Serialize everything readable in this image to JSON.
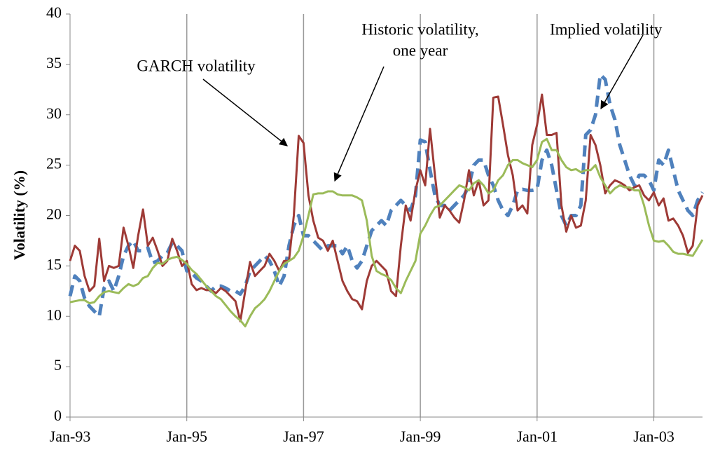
{
  "chart_data": {
    "type": "line",
    "y_label": "Volatility (%)",
    "categories": [
      "Jan-93",
      null,
      null,
      null,
      null,
      null,
      null,
      null,
      null,
      null,
      null,
      null,
      null,
      null,
      null,
      null,
      null,
      null,
      null,
      null,
      null,
      null,
      null,
      null,
      "Jan-95",
      null,
      null,
      null,
      null,
      null,
      null,
      null,
      null,
      null,
      null,
      null,
      null,
      null,
      null,
      null,
      null,
      null,
      null,
      null,
      null,
      null,
      null,
      null,
      "Jan-97",
      null,
      null,
      null,
      null,
      null,
      null,
      null,
      null,
      null,
      null,
      null,
      null,
      null,
      null,
      null,
      null,
      null,
      null,
      null,
      null,
      null,
      null,
      null,
      "Jan-99",
      null,
      null,
      null,
      null,
      null,
      null,
      null,
      null,
      null,
      null,
      null,
      null,
      null,
      null,
      null,
      null,
      null,
      null,
      null,
      null,
      null,
      null,
      null,
      "Jan-01",
      null,
      null,
      null,
      null,
      null,
      null,
      null,
      null,
      null,
      null,
      null,
      null,
      null,
      null,
      null,
      null,
      null,
      null,
      null,
      null,
      null,
      null,
      null,
      "Jan-03",
      null,
      null,
      null,
      null,
      null,
      null,
      null,
      null,
      null,
      null
    ],
    "series": [
      {
        "name": "GARCH volatility",
        "color": "#9e3a36",
        "dashed": false,
        "values": [
          15.5,
          17,
          16.5,
          14,
          12.5,
          13,
          17.7,
          13.5,
          15,
          14.8,
          15,
          18.8,
          17,
          14.8,
          18,
          20.6,
          17,
          17.8,
          16.5,
          15,
          15.5,
          17.7,
          16.5,
          15,
          15.5,
          13.2,
          12.6,
          12.8,
          12.6,
          12.6,
          12.3,
          12.8,
          12.5,
          12,
          11.5,
          9.5,
          12.5,
          15.4,
          14,
          14.5,
          15,
          16.2,
          15.5,
          14.5,
          15.5,
          15.5,
          20,
          27.9,
          27.2,
          22,
          19.5,
          17.8,
          17.5,
          16.5,
          17.5,
          15.5,
          13.5,
          12.5,
          11.7,
          11.5,
          10.7,
          13.5,
          15,
          15.5,
          15,
          14.5,
          12.5,
          12,
          17,
          21,
          19.5,
          22.5,
          24.5,
          23,
          28.6,
          24,
          19.8,
          21,
          20.5,
          19.8,
          19.3,
          21.5,
          24.5,
          22,
          23.5,
          21,
          21.5,
          31.7,
          31.8,
          29,
          26,
          24,
          20.5,
          21,
          20.2,
          27,
          29,
          32,
          28,
          28,
          28.2,
          21,
          18.4,
          20,
          18.8,
          19,
          21.5,
          28,
          27,
          25,
          22.2,
          23,
          23.5,
          23.3,
          23,
          22.5,
          22.8,
          23,
          22,
          21.5,
          22.3,
          21,
          21.7,
          19.5,
          19.7,
          19,
          18,
          16.3,
          17,
          21,
          22
        ]
      },
      {
        "name": "Historic volatility, one year",
        "color": "#9bbb59",
        "dashed": false,
        "values": [
          11.4,
          11.5,
          11.6,
          11.6,
          11.3,
          11.4,
          12,
          12.4,
          12.5,
          12.4,
          12.3,
          12.8,
          13.2,
          13,
          13.2,
          13.8,
          14,
          14.8,
          15.3,
          15.2,
          15.6,
          15.8,
          15.9,
          15.6,
          15.2,
          14.6,
          14.2,
          13.6,
          13,
          12.5,
          12,
          11.7,
          11.1,
          10.5,
          10,
          9.6,
          9,
          10,
          10.8,
          11.2,
          11.7,
          12.5,
          13.5,
          14.5,
          15.2,
          15.5,
          15.8,
          16.5,
          18,
          20,
          22.1,
          22.2,
          22.2,
          22.4,
          22.4,
          22.1,
          22,
          22,
          22,
          21.8,
          21.5,
          19.5,
          16,
          14.5,
          14.2,
          14,
          13.6,
          12.8,
          12.3,
          13.5,
          14.5,
          15.5,
          18.2,
          19,
          20,
          20.8,
          21,
          21.5,
          22,
          22.5,
          23,
          22.8,
          22.5,
          23.2,
          23.5,
          23,
          22.2,
          22.5,
          23.5,
          24,
          25,
          25.5,
          25.5,
          25.2,
          25,
          24.8,
          25.5,
          27.3,
          27.6,
          26.5,
          26.5,
          25.5,
          24.8,
          24.5,
          24.6,
          24.3,
          24.5,
          24.5,
          25,
          23.8,
          23,
          22.2,
          22.7,
          23,
          22.8,
          22.8,
          22.5,
          22.5,
          21,
          19,
          17.5,
          17.4,
          17.5,
          17,
          16.4,
          16.2,
          16.2,
          16.1,
          16,
          16.8,
          17.6
        ]
      },
      {
        "name": "Implied volatility",
        "color": "#4f81bd",
        "dashed": true,
        "values": [
          12,
          14,
          13.5,
          11.8,
          11,
          10.5,
          10,
          12.8,
          13.5,
          12.5,
          14,
          16,
          17,
          17.5,
          16.5,
          16.5,
          16.8,
          15.3,
          15.5,
          16,
          16.3,
          17.3,
          17,
          16.5,
          14.5,
          14.3,
          13.8,
          13.5,
          13,
          12.5,
          13,
          13,
          12.8,
          12.5,
          12.5,
          12.2,
          13,
          14.5,
          15,
          15.5,
          16,
          15.5,
          14.5,
          13,
          14,
          17,
          19,
          20,
          18,
          18,
          17.5,
          17,
          16.5,
          17,
          17,
          17,
          16.2,
          17,
          15.5,
          14.8,
          15.5,
          17,
          18.5,
          19,
          19.5,
          19,
          20.5,
          21,
          21.5,
          21,
          20.5,
          22,
          27.5,
          27.3,
          24.5,
          22,
          21,
          21,
          20.5,
          21,
          21.5,
          22,
          23,
          25,
          25.5,
          25.5,
          24,
          23,
          21.5,
          20.5,
          20,
          21,
          22.5,
          22.6,
          22.5,
          22.5,
          22.6,
          25.5,
          26.5,
          25,
          22.5,
          20,
          19,
          20,
          20,
          21,
          28,
          28.5,
          30,
          34,
          33.5,
          31,
          29.5,
          27,
          25.5,
          24,
          23,
          24,
          24,
          23.5,
          22.5,
          25.5,
          25,
          26.5,
          24.5,
          22.5,
          21.5,
          20.5,
          20,
          21.5,
          22.3
        ]
      }
    ],
    "annotations": [
      {
        "lines": [
          "GARCH volatility"
        ],
        "series": 0
      },
      {
        "lines": [
          "Historic volatility,",
          "one year"
        ],
        "series": 1
      },
      {
        "lines": [
          "Implied volatility"
        ],
        "series": 2
      }
    ],
    "ylim": [
      0,
      40
    ],
    "yticks": [
      0,
      5,
      10,
      15,
      20,
      25,
      30,
      35,
      40
    ],
    "x_grid": true
  }
}
